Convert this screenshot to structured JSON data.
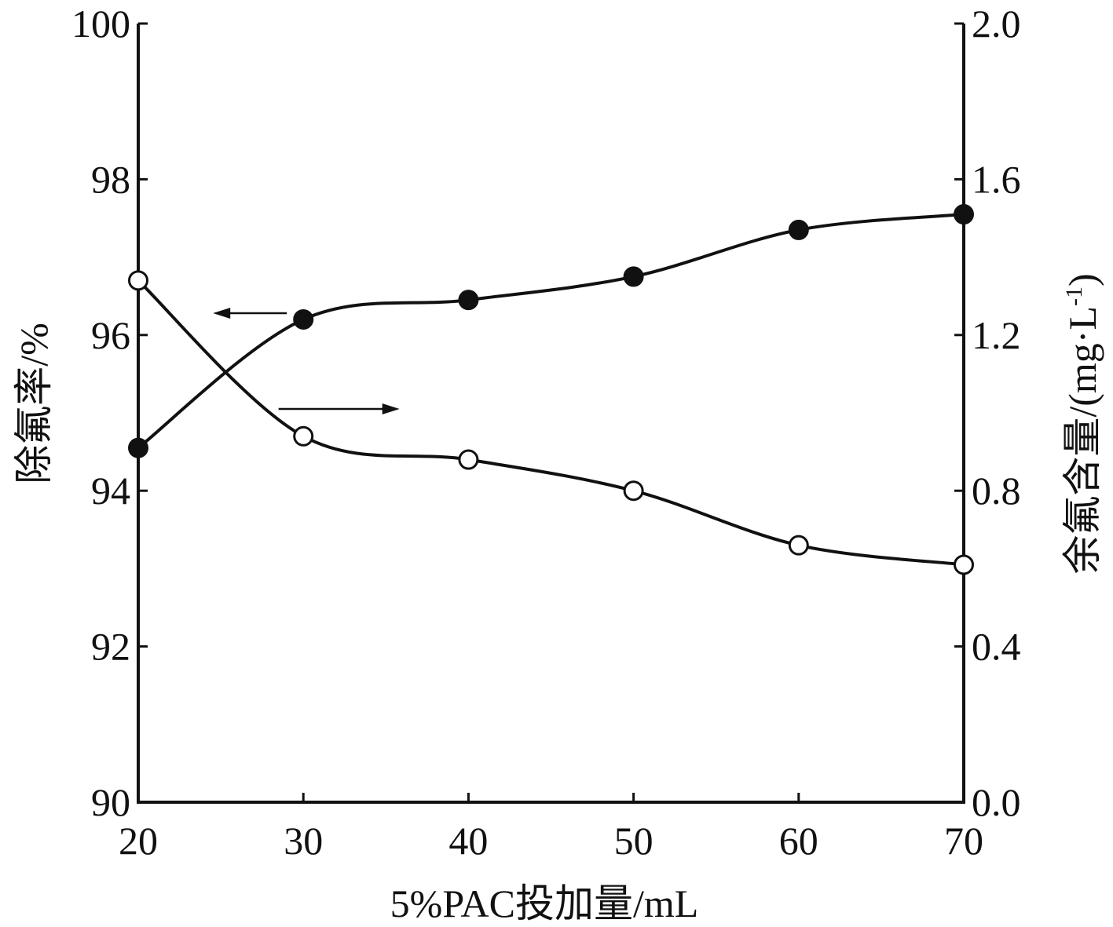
{
  "chart_data": {
    "type": "line",
    "x": [
      20,
      30,
      40,
      50,
      60,
      70
    ],
    "xlabel": "5%PAC投加量/mL",
    "xlim": [
      20,
      70
    ],
    "xticks": [
      "20",
      "30",
      "40",
      "50",
      "60",
      "70"
    ],
    "ylabel_left": "除氟率/%",
    "ylim_left": [
      90,
      100
    ],
    "yticks_left": [
      "90",
      "92",
      "94",
      "96",
      "98",
      "100"
    ],
    "ylabel_right": "余氟含量/(mg·L",
    "ylabel_right_sup": "-1",
    "ylabel_right_close": ")",
    "ylim_right": [
      0.0,
      2.0
    ],
    "yticks_right": [
      "0.0",
      "0.4",
      "0.8",
      "1.2",
      "1.6",
      "2.0"
    ],
    "grid": false,
    "series": [
      {
        "axis": "left",
        "marker": "filled-circle",
        "values": [
          94.55,
          96.2,
          96.45,
          96.75,
          97.35,
          97.55
        ]
      },
      {
        "axis": "right",
        "marker": "open-circle",
        "values": [
          1.34,
          0.94,
          0.88,
          0.8,
          0.66,
          0.61
        ]
      }
    ],
    "annotations": [
      {
        "type": "arrow",
        "direction": "left",
        "target_axis": "left",
        "at_x": 29,
        "at_y_left": 96.28
      },
      {
        "type": "arrow",
        "direction": "right",
        "target_axis": "right",
        "at_x": 28.5,
        "at_y_right": 1.01
      }
    ],
    "colors": {
      "ink": "#111111",
      "background": "#ffffff"
    }
  }
}
